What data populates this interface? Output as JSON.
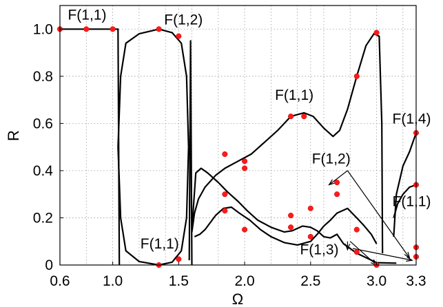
{
  "chart_data": {
    "type": "line",
    "xlabel": "Ω",
    "ylabel": "R",
    "xlim": [
      0.6,
      3.3
    ],
    "ylim": [
      0,
      1.1
    ],
    "x_ticks": [
      {
        "value": 0.6,
        "label": "0.6"
      },
      {
        "value": 1.0,
        "label": "1.0"
      },
      {
        "value": 1.5,
        "label": "1.5"
      },
      {
        "value": 2.0,
        "label": "2.0"
      },
      {
        "value": 2.5,
        "label": "2.5"
      },
      {
        "value": 3.0,
        "label": "3.0"
      },
      {
        "value": 3.3,
        "label": "3.3"
      }
    ],
    "y_ticks": [
      {
        "value": 0,
        "label": "0"
      },
      {
        "value": 0.2,
        "label": "0.2"
      },
      {
        "value": 0.4,
        "label": "0.4"
      },
      {
        "value": 0.6,
        "label": "0.6"
      },
      {
        "value": 0.8,
        "label": "0.8"
      },
      {
        "value": 1.0,
        "label": "1.0"
      }
    ],
    "x_minor_grid": [
      0.8,
      1.2,
      1.4,
      1.6,
      1.8,
      2.2,
      2.4,
      2.6,
      2.8,
      3.2
    ],
    "grid": "dotted",
    "series": [
      {
        "points": [
          [
            0.6,
            1.0
          ],
          [
            1.04,
            1.0
          ],
          [
            1.05,
            0.0
          ]
        ]
      },
      {
        "points": [
          [
            1.04,
            0.5
          ],
          [
            1.06,
            0.8
          ],
          [
            1.1,
            0.94
          ],
          [
            1.2,
            0.98
          ],
          [
            1.35,
            1.0
          ],
          [
            1.45,
            0.985
          ],
          [
            1.52,
            0.94
          ],
          [
            1.56,
            0.8
          ],
          [
            1.575,
            0.5
          ]
        ]
      },
      {
        "points": [
          [
            1.04,
            0.5
          ],
          [
            1.06,
            0.2
          ],
          [
            1.1,
            0.06
          ],
          [
            1.2,
            0.015
          ],
          [
            1.35,
            0.0
          ],
          [
            1.45,
            0.012
          ],
          [
            1.52,
            0.06
          ],
          [
            1.56,
            0.2
          ],
          [
            1.575,
            0.5
          ]
        ]
      },
      {
        "points": [
          [
            1.58,
            0.02
          ],
          [
            1.59,
            0.95
          ],
          [
            1.6,
            0.0
          ]
        ]
      },
      {
        "points": [
          [
            1.6,
            0.14
          ],
          [
            1.62,
            0.22
          ],
          [
            1.65,
            0.28
          ],
          [
            1.7,
            0.33
          ],
          [
            1.78,
            0.38
          ],
          [
            1.85,
            0.41
          ],
          [
            1.95,
            0.44
          ],
          [
            2.05,
            0.47
          ],
          [
            2.15,
            0.52
          ],
          [
            2.25,
            0.57
          ],
          [
            2.35,
            0.63
          ],
          [
            2.45,
            0.645
          ],
          [
            2.52,
            0.63
          ],
          [
            2.6,
            0.58
          ],
          [
            2.67,
            0.545
          ],
          [
            2.72,
            0.57
          ],
          [
            2.78,
            0.66
          ],
          [
            2.85,
            0.8
          ],
          [
            2.92,
            0.93
          ],
          [
            2.98,
            0.98
          ],
          [
            3.02,
            0.97
          ],
          [
            3.04,
            0.6
          ],
          [
            3.045,
            0.05
          ]
        ]
      },
      {
        "points": [
          [
            1.6,
            0.15
          ],
          [
            1.63,
            0.39
          ],
          [
            1.67,
            0.41
          ],
          [
            1.72,
            0.39
          ],
          [
            1.8,
            0.35
          ],
          [
            1.87,
            0.31
          ],
          [
            1.95,
            0.27
          ],
          [
            2.02,
            0.23
          ],
          [
            2.1,
            0.19
          ],
          [
            2.2,
            0.16
          ],
          [
            2.3,
            0.14
          ],
          [
            2.36,
            0.145
          ],
          [
            2.44,
            0.165
          ],
          [
            2.5,
            0.16
          ],
          [
            2.55,
            0.145
          ],
          [
            2.6,
            0.12
          ],
          [
            2.65,
            0.115
          ],
          [
            2.7,
            0.13
          ],
          [
            2.75,
            0.09
          ],
          [
            2.85,
            0.05
          ],
          [
            3.0,
            0.01
          ],
          [
            3.15,
            0.008
          ]
        ]
      },
      {
        "points": [
          [
            1.62,
            0.12
          ],
          [
            1.66,
            0.13
          ],
          [
            1.7,
            0.15
          ],
          [
            1.78,
            0.21
          ],
          [
            1.84,
            0.24
          ],
          [
            1.9,
            0.245
          ],
          [
            1.96,
            0.22
          ],
          [
            2.04,
            0.19
          ],
          [
            2.12,
            0.15
          ],
          [
            2.2,
            0.12
          ],
          [
            2.3,
            0.095
          ],
          [
            2.4,
            0.085
          ],
          [
            2.5,
            0.1
          ],
          [
            2.55,
            0.13
          ],
          [
            2.6,
            0.165
          ],
          [
            2.65,
            0.19
          ],
          [
            2.7,
            0.22
          ],
          [
            2.78,
            0.24
          ],
          [
            2.85,
            0.2
          ],
          [
            2.9,
            0.17
          ],
          [
            2.96,
            0.13
          ],
          [
            3.0,
            0.09
          ]
        ]
      },
      {
        "points": [
          [
            3.13,
            0.12
          ],
          [
            3.15,
            0.3
          ],
          [
            3.2,
            0.42
          ],
          [
            3.25,
            0.48
          ],
          [
            3.3,
            0.56
          ]
        ]
      },
      {
        "points": [
          [
            3.13,
            0.2
          ],
          [
            3.16,
            0.26
          ],
          [
            3.2,
            0.3
          ],
          [
            3.25,
            0.33
          ],
          [
            3.3,
            0.34
          ]
        ]
      }
    ],
    "markers": [
      [
        0.6,
        1.0
      ],
      [
        0.8,
        1.0
      ],
      [
        1.0,
        1.0
      ],
      [
        1.35,
        1.0
      ],
      [
        1.5,
        0.97
      ],
      [
        1.35,
        0.0
      ],
      [
        1.5,
        0.025
      ],
      [
        1.85,
        0.47
      ],
      [
        2.0,
        0.44
      ],
      [
        2.35,
        0.63
      ],
      [
        2.45,
        0.63
      ],
      [
        2.85,
        0.8
      ],
      [
        3.0,
        0.985
      ],
      [
        1.85,
        0.3
      ],
      [
        2.0,
        0.41
      ],
      [
        2.35,
        0.16
      ],
      [
        2.5,
        0.24
      ],
      [
        2.7,
        0.35
      ],
      [
        2.85,
        0.15
      ],
      [
        1.85,
        0.23
      ],
      [
        2.0,
        0.15
      ],
      [
        2.35,
        0.21
      ],
      [
        2.5,
        0.12
      ],
      [
        2.7,
        0.3
      ],
      [
        2.85,
        0.055
      ],
      [
        3.0,
        0.0
      ],
      [
        3.3,
        0.075
      ],
      [
        3.3,
        0.035
      ],
      [
        3.3,
        0.56
      ],
      [
        3.3,
        0.34
      ]
    ],
    "annotations": [
      {
        "text": "F(1,1)",
        "x": 0.66,
        "y": 1.04
      },
      {
        "text": "F(1,2)",
        "x": 1.39,
        "y": 1.02
      },
      {
        "text": "F(1,1)",
        "x": 1.21,
        "y": 0.07
      },
      {
        "text": "F(1,1)",
        "x": 2.23,
        "y": 0.7
      },
      {
        "text": "F(1,4)",
        "x": 3.12,
        "y": 0.6
      },
      {
        "text": "F(1,2)",
        "x": 2.51,
        "y": 0.43
      },
      {
        "text": "F(1,1)",
        "x": 3.12,
        "y": 0.25
      },
      {
        "text": "F(1,3)",
        "x": 2.42,
        "y": 0.045
      }
    ],
    "arrows": [
      {
        "from": [
          2.78,
          0.4
        ],
        "to": [
          2.64,
          0.34
        ]
      },
      {
        "from": [
          2.78,
          0.4
        ],
        "to": [
          3.25,
          0.03
        ]
      },
      {
        "from": [
          2.8,
          0.1
        ],
        "to": [
          3.0,
          0.0
        ]
      },
      {
        "from": [
          2.78,
          0.1
        ],
        "to": [
          2.78,
          0.065
        ]
      },
      {
        "from": [
          2.82,
          0.07
        ],
        "to": [
          3.27,
          0.02
        ]
      }
    ]
  }
}
